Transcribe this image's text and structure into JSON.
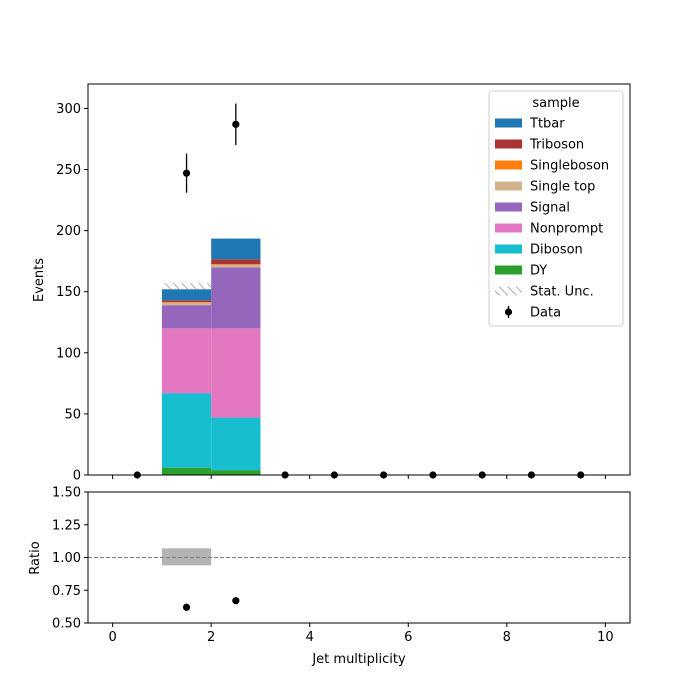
{
  "chart_data": {
    "type": "bar",
    "stacked": true,
    "xlabel": "Jet multiplicity",
    "ylabel_main": "Events",
    "ylabel_ratio": "Ratio",
    "xlim": [
      -0.5,
      10.5
    ],
    "ylim_main": [
      0,
      320
    ],
    "ylim_ratio": [
      0.5,
      1.5
    ],
    "x_ticks": [
      0,
      2,
      4,
      6,
      8,
      10
    ],
    "y_ticks_main": [
      0,
      50,
      100,
      150,
      200,
      250,
      300
    ],
    "y_ticks_ratio": [
      0.5,
      0.75,
      1.0,
      1.25,
      1.5
    ],
    "y_tick_labels_ratio": [
      "0.50",
      "0.75",
      "1.00",
      "1.25",
      "1.50"
    ],
    "bin_edges": [
      0,
      1,
      2,
      3,
      4,
      5,
      6,
      7,
      8,
      9,
      10
    ],
    "stack_order": [
      "DY",
      "Diboson",
      "Nonprompt",
      "Signal",
      "Single top",
      "Singleboson",
      "Triboson",
      "Ttbar"
    ],
    "series": [
      {
        "name": "DY",
        "color": "#2ca02c",
        "values": [
          0,
          6,
          4,
          0,
          0,
          0,
          0,
          0,
          0,
          0
        ]
      },
      {
        "name": "Diboson",
        "color": "#17becf",
        "values": [
          0,
          61,
          43,
          0,
          0,
          0,
          0,
          0,
          0,
          0
        ]
      },
      {
        "name": "Nonprompt",
        "color": "#e377c2",
        "values": [
          0,
          53,
          73,
          0,
          0,
          0,
          0,
          0,
          0,
          0
        ]
      },
      {
        "name": "Signal",
        "color": "#9467bd",
        "values": [
          0,
          19,
          50,
          0,
          0,
          0,
          0,
          0,
          0,
          0
        ]
      },
      {
        "name": "Single top",
        "color": "#d2b48c",
        "values": [
          0,
          2,
          2,
          0,
          0,
          0,
          0,
          0,
          0,
          0
        ]
      },
      {
        "name": "Singleboson",
        "color": "#ff7f0e",
        "values": [
          0,
          0.5,
          0.5,
          0,
          0,
          0,
          0,
          0,
          0,
          0
        ]
      },
      {
        "name": "Triboson",
        "color": "#aa3333",
        "values": [
          0,
          1.5,
          4,
          0,
          0,
          0,
          0,
          0,
          0,
          0
        ]
      },
      {
        "name": "Ttbar",
        "color": "#1f77b4",
        "values": [
          0,
          9,
          17,
          0,
          0,
          0,
          0,
          0,
          0,
          0
        ]
      }
    ],
    "stat_unc": {
      "name": "Stat. Unc.",
      "bins": [
        [
          1,
          2,
          151,
          157
        ]
      ]
    },
    "data": {
      "name": "Data",
      "x": [
        0.5,
        1.5,
        2.5,
        3.5,
        4.5,
        5.5,
        6.5,
        7.5,
        8.5,
        9.5
      ],
      "y": [
        0,
        247,
        287,
        0,
        0,
        0,
        0,
        0,
        0,
        0
      ],
      "yerr": [
        0,
        16,
        17,
        0,
        0,
        0,
        0,
        0,
        0,
        0
      ]
    },
    "ratio": {
      "x": [
        1.5,
        2.5
      ],
      "y": [
        0.62,
        0.67
      ],
      "unc_band": [
        [
          1,
          2,
          0.94,
          1.07
        ]
      ],
      "reference_line": 1.0
    },
    "legend": {
      "title": "sample",
      "placement": "top-right",
      "entries": [
        "Ttbar",
        "Triboson",
        "Singleboson",
        "Single top",
        "Signal",
        "Nonprompt",
        "Diboson",
        "DY",
        "Stat. Unc.",
        "Data"
      ]
    }
  }
}
